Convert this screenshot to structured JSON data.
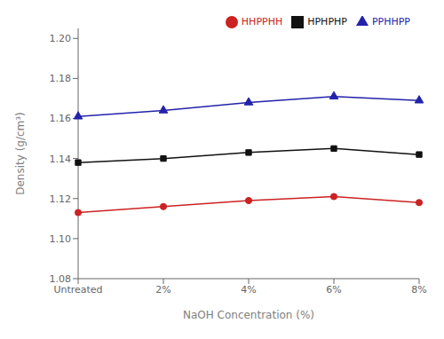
{
  "chart_data": {
    "type": "line",
    "categories": [
      "Untreated",
      "2%",
      "4%",
      "6%",
      "8%"
    ],
    "series": [
      {
        "name": "HPHPHP",
        "color": "#111111",
        "marker": "square",
        "line_style": "solid",
        "values": [
          1.138,
          1.14,
          1.143,
          1.145,
          1.142
        ]
      },
      {
        "name": "HHPPHH",
        "color": "#cc2222",
        "marker": "circle",
        "line_style": "solid",
        "values": [
          1.113,
          1.116,
          1.119,
          1.121,
          1.118
        ]
      },
      {
        "name": "PPHHPP",
        "color": "#2222aa",
        "marker": "triangle",
        "line_style": "solid",
        "values": [
          1.161,
          1.164,
          1.168,
          1.171,
          1.169
        ]
      }
    ],
    "xlabel": "NaOH Concentration (%)",
    "ylabel": "Density (g/cm³)",
    "ylim": [
      1.08,
      1.205
    ],
    "yticks": [
      1.08,
      {
        "value": 1.1,
        "label": "1.10"
      },
      1.12,
      1.14,
      1.16,
      1.18,
      {
        "value": 1.2,
        "label": "1.20"
      }
    ],
    "legend": "upper right",
    "grid": false
  }
}
